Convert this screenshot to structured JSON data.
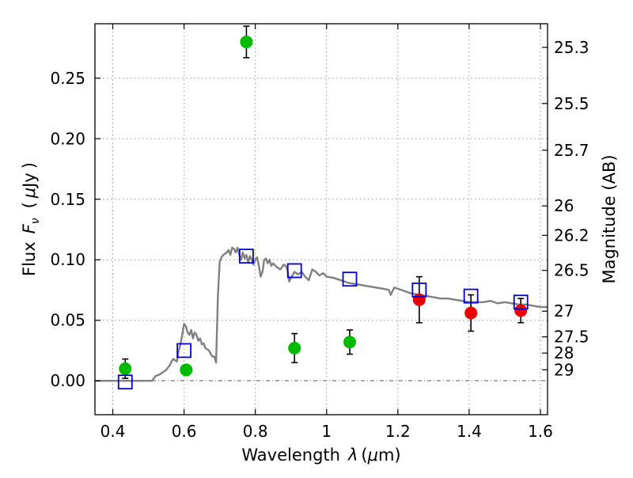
{
  "chart_data": {
    "type": "scatter",
    "xlabel_prefix": "Wavelength",
    "xlabel_sym": "λ",
    "xlabel_unit_open": "(",
    "xlabel_unit_mu": "μ",
    "xlabel_unit_rest": "m)",
    "ylabel_prefix": "Flux",
    "ylabel_sym": "F",
    "ylabel_sub": "ν",
    "ylabel_unit_open": "(",
    "ylabel_unit_mu": "μ",
    "ylabel_unit_rest": "Jy",
    "ylabel_unit_close": ")",
    "y2label": "Magnitude (AB)",
    "xlim": [
      0.35,
      1.62
    ],
    "ylim": [
      -0.028,
      0.295
    ],
    "grid": true,
    "x_ticks": [
      0.4,
      0.6,
      0.8,
      1.0,
      1.2,
      1.4,
      1.6
    ],
    "x_tick_labels": [
      "0.4",
      "0.6",
      "0.8",
      "1",
      "1.2",
      "1.4",
      "1.6"
    ],
    "y_ticks": [
      0.0,
      0.05,
      0.1,
      0.15,
      0.2,
      0.25
    ],
    "y_tick_labels": [
      "0.00",
      "0.05",
      "0.10",
      "0.15",
      "0.20",
      "0.25"
    ],
    "y2_ticks": [
      {
        "label": "25.3",
        "flux": 0.2755
      },
      {
        "label": "25.5",
        "flux": 0.2291
      },
      {
        "label": "25.7",
        "flux": 0.1905
      },
      {
        "label": "26",
        "flux": 0.1445
      },
      {
        "label": "26.2",
        "flux": 0.1202
      },
      {
        "label": "26.5",
        "flux": 0.0912
      },
      {
        "label": "27",
        "flux": 0.0575
      },
      {
        "label": "27.5",
        "flux": 0.0363
      },
      {
        "label": "28",
        "flux": 0.0229
      },
      {
        "label": "29",
        "flux": 0.0091
      }
    ],
    "sed_model": {
      "color": "#808080",
      "x": [
        0.35,
        0.51,
        0.515,
        0.52,
        0.53,
        0.54,
        0.55,
        0.56,
        0.565,
        0.57,
        0.575,
        0.58,
        0.585,
        0.59,
        0.595,
        0.6,
        0.605,
        0.61,
        0.615,
        0.62,
        0.625,
        0.63,
        0.635,
        0.64,
        0.645,
        0.65,
        0.655,
        0.66,
        0.665,
        0.67,
        0.675,
        0.68,
        0.685,
        0.69,
        0.695,
        0.7,
        0.705,
        0.71,
        0.715,
        0.72,
        0.725,
        0.73,
        0.735,
        0.74,
        0.745,
        0.75,
        0.755,
        0.76,
        0.765,
        0.77,
        0.775,
        0.78,
        0.785,
        0.79,
        0.795,
        0.8,
        0.805,
        0.81,
        0.815,
        0.82,
        0.825,
        0.83,
        0.835,
        0.84,
        0.845,
        0.85,
        0.86,
        0.87,
        0.88,
        0.885,
        0.89,
        0.895,
        0.9,
        0.91,
        0.92,
        0.93,
        0.94,
        0.95,
        0.96,
        0.97,
        0.98,
        0.99,
        1.0,
        1.02,
        1.04,
        1.06,
        1.08,
        1.1,
        1.12,
        1.14,
        1.16,
        1.175,
        1.18,
        1.19,
        1.2,
        1.22,
        1.24,
        1.26,
        1.28,
        1.3,
        1.32,
        1.34,
        1.36,
        1.38,
        1.4,
        1.42,
        1.44,
        1.46,
        1.48,
        1.5,
        1.52,
        1.54,
        1.56,
        1.58,
        1.6,
        1.62
      ],
      "y": [
        0.0,
        0.0,
        0.002,
        0.004,
        0.005,
        0.007,
        0.009,
        0.013,
        0.016,
        0.018,
        0.017,
        0.016,
        0.025,
        0.03,
        0.038,
        0.047,
        0.045,
        0.04,
        0.038,
        0.042,
        0.035,
        0.04,
        0.038,
        0.033,
        0.035,
        0.03,
        0.031,
        0.027,
        0.026,
        0.025,
        0.022,
        0.02,
        0.02,
        0.015,
        0.07,
        0.098,
        0.102,
        0.104,
        0.105,
        0.106,
        0.108,
        0.104,
        0.11,
        0.109,
        0.106,
        0.11,
        0.104,
        0.1,
        0.106,
        0.101,
        0.104,
        0.098,
        0.103,
        0.1,
        0.096,
        0.1,
        0.102,
        0.095,
        0.086,
        0.09,
        0.1,
        0.101,
        0.097,
        0.1,
        0.095,
        0.097,
        0.094,
        0.092,
        0.096,
        0.095,
        0.092,
        0.082,
        0.085,
        0.09,
        0.088,
        0.09,
        0.086,
        0.083,
        0.092,
        0.09,
        0.087,
        0.089,
        0.086,
        0.085,
        0.083,
        0.081,
        0.08,
        0.079,
        0.078,
        0.077,
        0.076,
        0.075,
        0.071,
        0.077,
        0.076,
        0.074,
        0.072,
        0.071,
        0.07,
        0.069,
        0.068,
        0.068,
        0.067,
        0.066,
        0.065,
        0.065,
        0.065,
        0.066,
        0.064,
        0.065,
        0.064,
        0.063,
        0.063,
        0.062,
        0.061,
        0.061
      ]
    },
    "series": [
      {
        "marker": "circle",
        "color": "#00bb00",
        "points": [
          {
            "x": 0.435,
            "y": 0.01,
            "yerr": 0.008
          },
          {
            "x": 0.606,
            "y": 0.009,
            "yerr": 0.003
          },
          {
            "x": 0.775,
            "y": 0.28,
            "yerr": 0.013
          },
          {
            "x": 0.91,
            "y": 0.027,
            "yerr": 0.012
          },
          {
            "x": 1.065,
            "y": 0.032,
            "yerr": 0.01
          }
        ]
      },
      {
        "marker": "circle",
        "color": "#ee0000",
        "points": [
          {
            "x": 1.26,
            "y": 0.067,
            "yerr": 0.019
          },
          {
            "x": 1.405,
            "y": 0.056,
            "yerr": 0.015
          },
          {
            "x": 1.545,
            "y": 0.058,
            "yerr": 0.01
          }
        ]
      },
      {
        "marker": "square-open",
        "color": "#0000dd",
        "points": [
          {
            "x": 0.435,
            "y": -0.001
          },
          {
            "x": 0.6,
            "y": 0.025
          },
          {
            "x": 0.775,
            "y": 0.103
          },
          {
            "x": 0.91,
            "y": 0.091
          },
          {
            "x": 1.065,
            "y": 0.084
          },
          {
            "x": 1.26,
            "y": 0.075
          },
          {
            "x": 1.405,
            "y": 0.07
          },
          {
            "x": 1.545,
            "y": 0.065
          }
        ]
      }
    ]
  }
}
